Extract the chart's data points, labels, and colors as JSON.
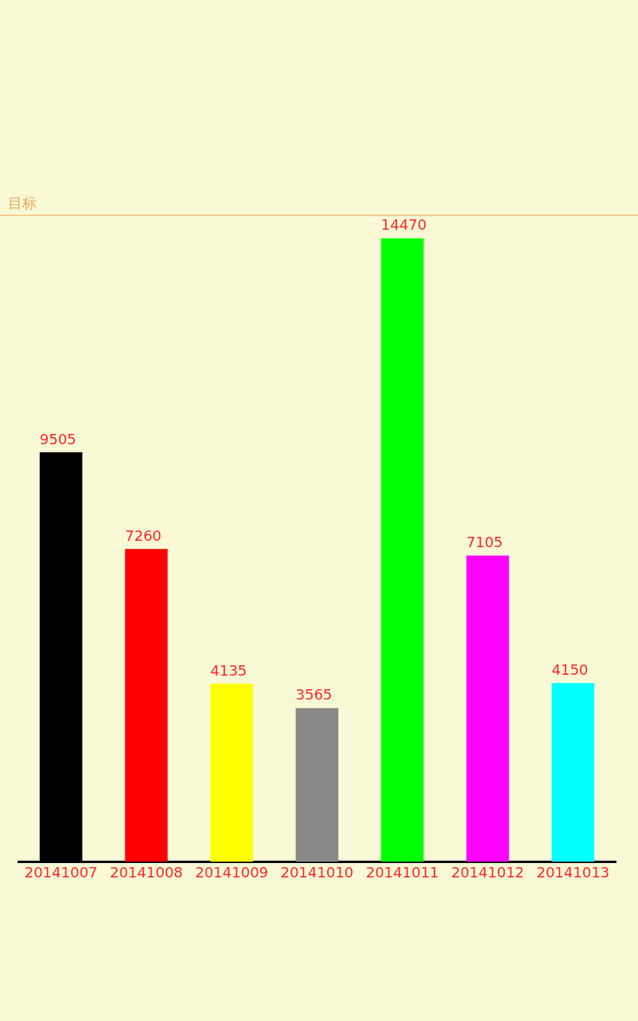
{
  "chart_data": {
    "type": "bar",
    "categories": [
      "20141007",
      "20141008",
      "20141009",
      "20141010",
      "20141011",
      "20141012",
      "20141013"
    ],
    "values": [
      9505,
      7260,
      4135,
      3565,
      14470,
      7105,
      4150
    ],
    "colors": [
      "#000000",
      "#ff0000",
      "#ffff00",
      "#888888",
      "#00ff00",
      "#ff00ff",
      "#00ffff"
    ],
    "tick_labels": "x",
    "grid": false,
    "data_labels": true,
    "ref_lines": [
      {
        "axis": "y",
        "value": 15000,
        "label": "目标",
        "color": "#f7cc8f"
      }
    ]
  }
}
